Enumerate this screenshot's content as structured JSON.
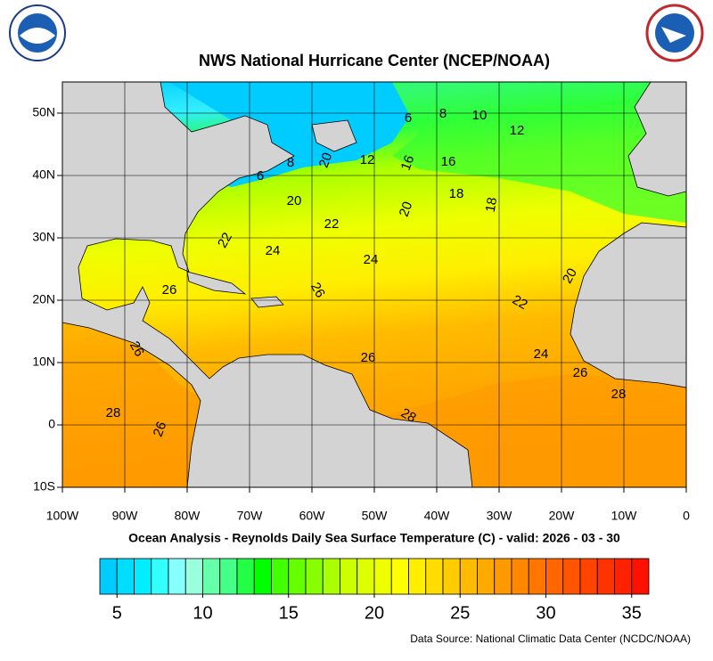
{
  "header": {
    "title": "NWS National Hurricane Center (NCEP/NOAA)"
  },
  "map": {
    "lon_range": [
      -100,
      0
    ],
    "lat_range": [
      -10,
      55
    ],
    "lon_ticks": [
      {
        "value": -100,
        "label": "100W"
      },
      {
        "value": -90,
        "label": "90W"
      },
      {
        "value": -80,
        "label": "80W"
      },
      {
        "value": -70,
        "label": "70W"
      },
      {
        "value": -60,
        "label": "60W"
      },
      {
        "value": -50,
        "label": "50W"
      },
      {
        "value": -40,
        "label": "40W"
      },
      {
        "value": -30,
        "label": "30W"
      },
      {
        "value": -20,
        "label": "20W"
      },
      {
        "value": -10,
        "label": "10W"
      },
      0
    ],
    "lat_ticks": [
      {
        "value": -10,
        "label": "10S"
      },
      0,
      {
        "value": 10,
        "label": "10N"
      },
      {
        "value": 20,
        "label": "20N"
      },
      {
        "value": 30,
        "label": "30N"
      },
      {
        "value": 40,
        "label": "40N"
      },
      {
        "value": 50,
        "label": "50N"
      }
    ],
    "contour_labels": [
      6,
      8,
      10,
      12,
      6,
      8,
      20,
      12,
      16,
      16,
      18,
      18,
      20,
      22,
      20,
      22,
      24,
      24,
      26,
      26,
      20,
      22,
      26,
      24,
      26,
      26,
      28,
      28,
      28,
      26
    ]
  },
  "caption": "Ocean Analysis - Reynolds Daily Sea Surface Temperature (C) - valid: 2026 - 03 - 30",
  "colorbar": {
    "range": [
      4,
      36
    ],
    "ticks": [
      5,
      10,
      15,
      20,
      25,
      30,
      35
    ],
    "colors": [
      "#00ccff",
      "#00ddff",
      "#00eeff",
      "#33ffff",
      "#88ffff",
      "#99ffdd",
      "#66ffaa",
      "#44ff88",
      "#22ff44",
      "#00ff00",
      "#44ff00",
      "#66ff00",
      "#88ff00",
      "#aaff00",
      "#ccff00",
      "#ddff00",
      "#eeff00",
      "#ffff00",
      "#ffee00",
      "#ffdd00",
      "#ffcc00",
      "#ffbb00",
      "#ffaa00",
      "#ff9900",
      "#ff8800",
      "#ff7700",
      "#ff6600",
      "#ff5500",
      "#ff4400",
      "#ff3300",
      "#ff2200",
      "#ff1100"
    ]
  },
  "footer": "Data Source: National Climatic Data Center (NCDC/NOAA)"
}
